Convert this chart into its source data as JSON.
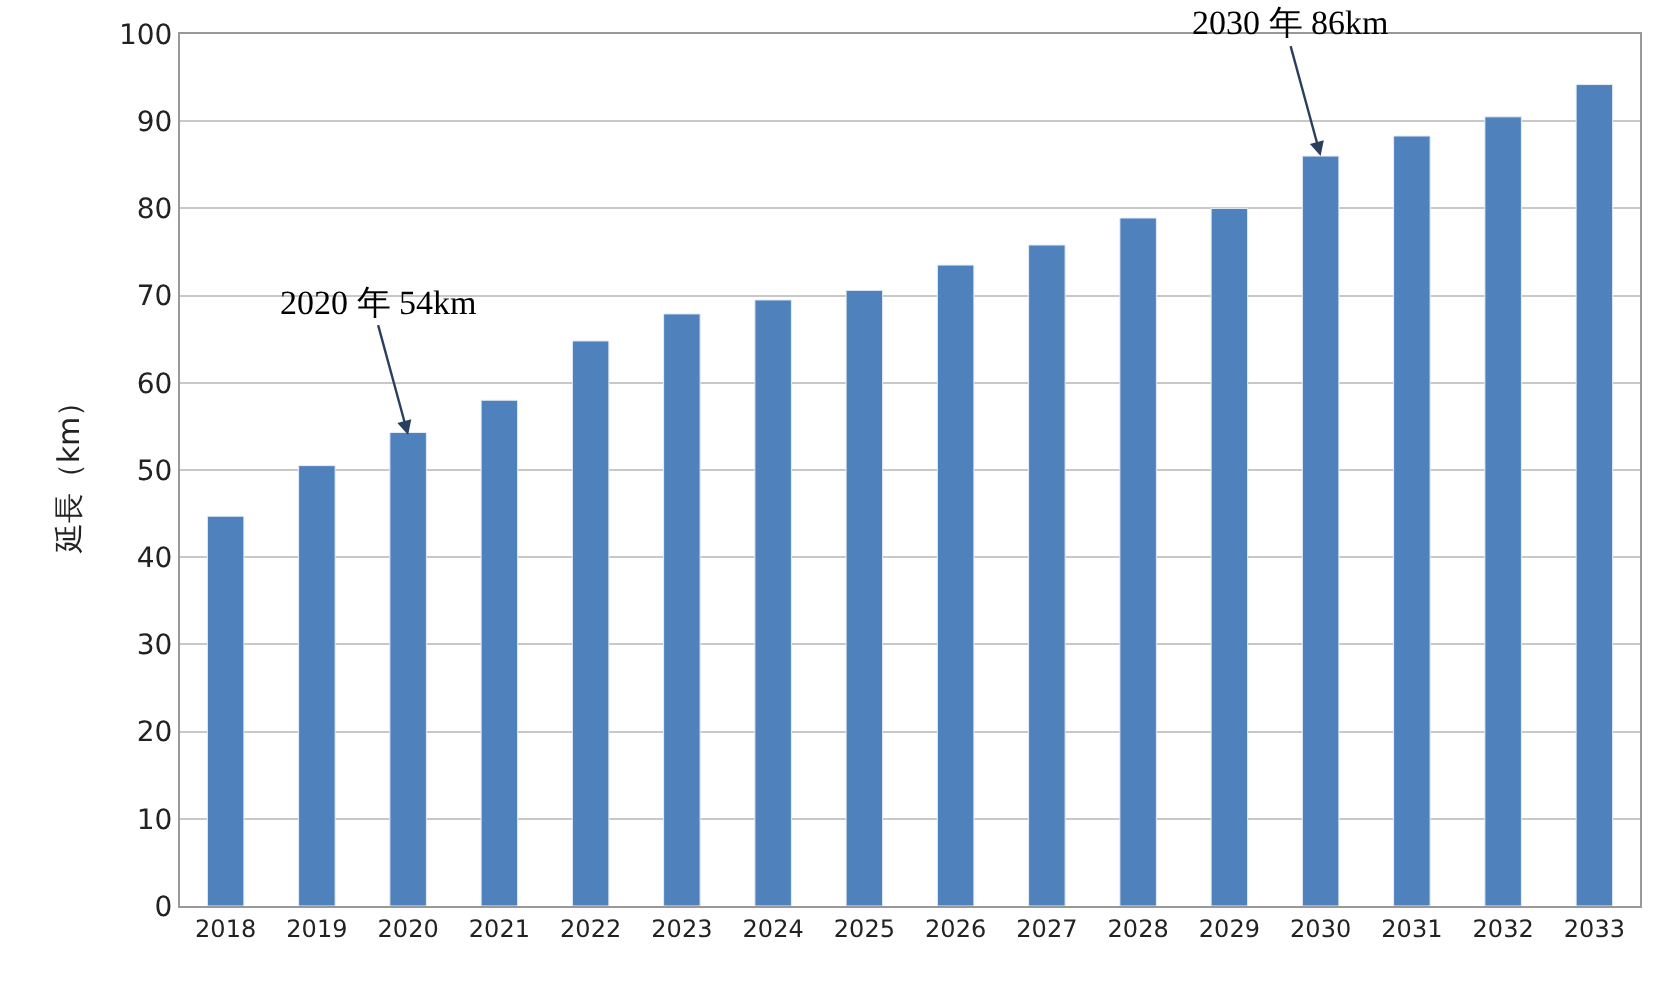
{
  "chart_data": {
    "type": "bar",
    "ylabel": "延長（km）",
    "categories": [
      "2018",
      "2019",
      "2020",
      "2021",
      "2022",
      "2023",
      "2024",
      "2025",
      "2026",
      "2027",
      "2028",
      "2029",
      "2030",
      "2031",
      "2032",
      "2033"
    ],
    "values": [
      44.7,
      50.5,
      54.3,
      58,
      64.8,
      67.9,
      69.5,
      70.6,
      73.5,
      75.8,
      78.9,
      80,
      86,
      88.3,
      90.5,
      94.2
    ],
    "color": "#4f81bd",
    "ylim": [
      0,
      100
    ],
    "yticks": [
      0,
      10,
      20,
      30,
      40,
      50,
      60,
      70,
      80,
      90,
      100
    ],
    "grid": "y",
    "annotations": [
      {
        "text": "2020 年 54km",
        "x": "2020",
        "y": 54
      },
      {
        "text": "2030 年 86km",
        "x": "2030",
        "y": 86
      }
    ]
  }
}
